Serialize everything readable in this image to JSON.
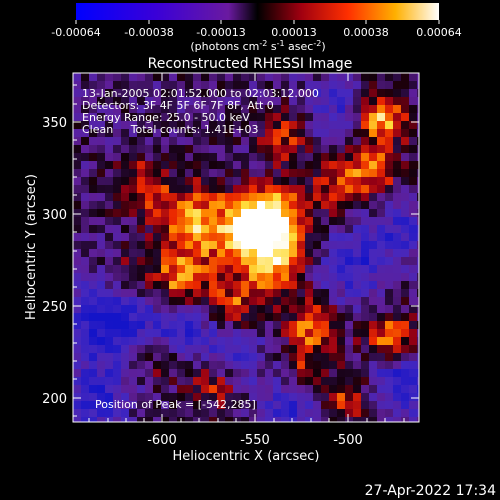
{
  "colorbar": {
    "ticks": [
      "-0.00064",
      "-0.00038",
      "-0.00013",
      "0.00013",
      "0.00038",
      "0.00064"
    ],
    "units_prefix": "(photons cm",
    "units_sup1": "-2",
    "units_mid1": " s",
    "units_sup2": "-1",
    "units_mid2": " asec",
    "units_sup3": "-2",
    "units_suffix": ")"
  },
  "title": "Reconstructed RHESSI Image",
  "info": {
    "line1": "13-Jan-2005 02:01:52.000 to 02:03:12.000",
    "line2": "Detectors: 3F 4F 5F 6F 7F 8F, Att 0",
    "line3": "Energy Range: 25.0 - 50.0 keV",
    "line4": "Clean     Total counts: 1.41E+03"
  },
  "peak_label": "Position of Peak = [-542,285]",
  "axes": {
    "xlabel": "Heliocentric X (arcsec)",
    "ylabel": "Heliocentric Y (arcsec)",
    "xticks": [
      "-600",
      "-550",
      "-500"
    ],
    "yticks": [
      "350",
      "300",
      "250",
      "200"
    ]
  },
  "footer_timestamp": "27-Apr-2022 17:34"
}
